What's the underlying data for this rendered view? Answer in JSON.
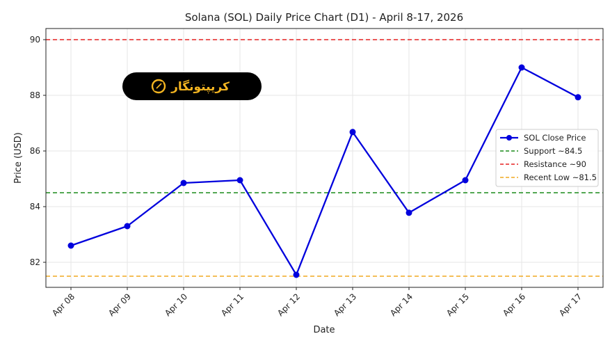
{
  "chart_data": {
    "type": "line",
    "title": "Solana (SOL) Daily Price Chart (D1) - April 8-17, 2026",
    "xlabel": "Date",
    "ylabel": "Price (USD)",
    "categories": [
      "Apr 08",
      "Apr 09",
      "Apr 10",
      "Apr 11",
      "Apr 12",
      "Apr 13",
      "Apr 14",
      "Apr 15",
      "Apr 16",
      "Apr 17"
    ],
    "series": [
      {
        "name": "SOL Close Price",
        "color": "#0000dd",
        "values": [
          82.6,
          83.3,
          84.85,
          84.95,
          81.55,
          86.68,
          83.78,
          84.95,
          89.0,
          87.93
        ]
      }
    ],
    "reference_lines": [
      {
        "name": "Support ~84.5",
        "value": 84.5,
        "color": "#1a8a1a",
        "style": "dashed"
      },
      {
        "name": "Resistance ~90",
        "value": 90,
        "color": "#e62020",
        "style": "dashed"
      },
      {
        "name": "Recent Low ~81.5",
        "value": 81.5,
        "color": "#f0a820",
        "style": "dashed"
      }
    ],
    "ylim": [
      81.1,
      90.4
    ],
    "yticks": [
      82,
      84,
      86,
      88,
      90
    ],
    "grid": true,
    "legend_position": "right",
    "watermark": {
      "text": "کریپتونگار",
      "icon": "crypto-logo-icon",
      "text_color": "#f4b521",
      "background": "#000000"
    }
  }
}
